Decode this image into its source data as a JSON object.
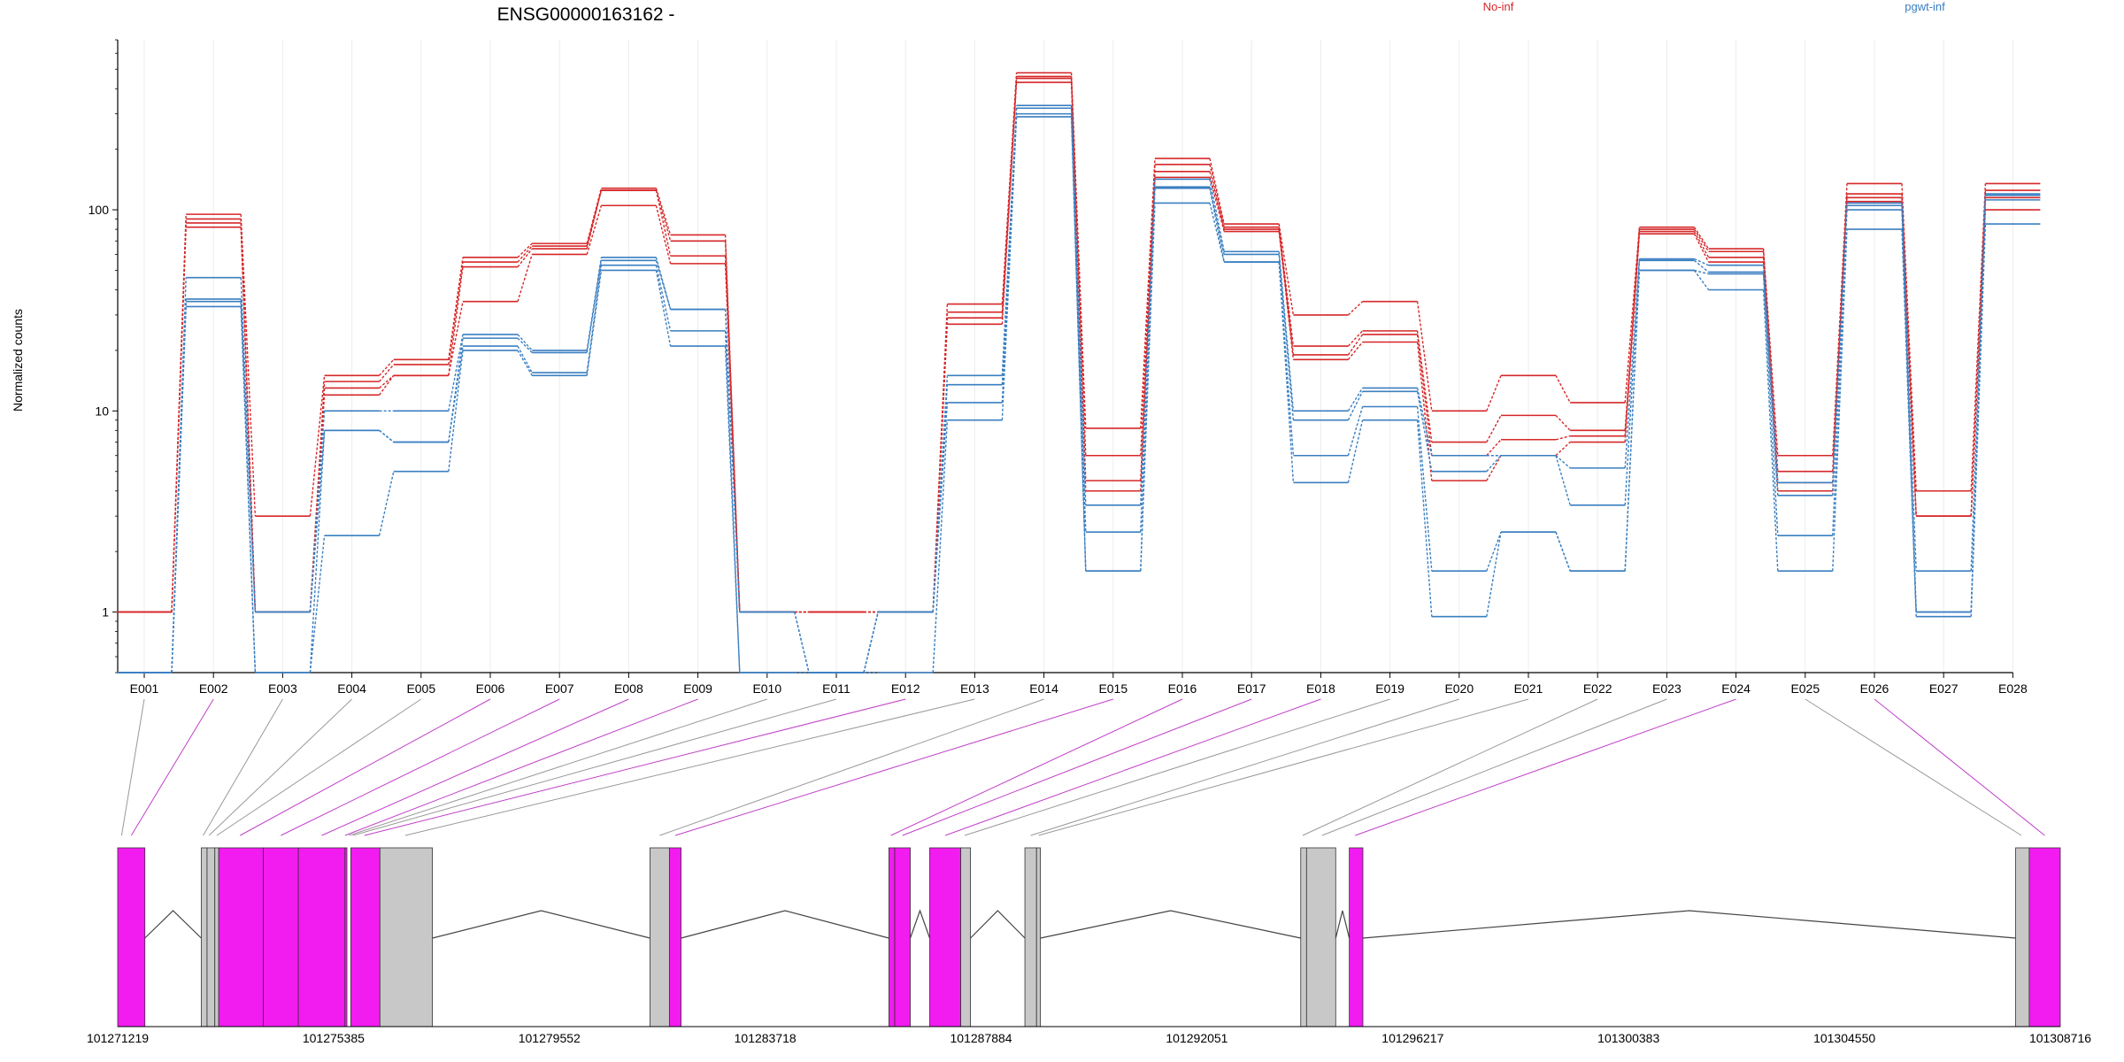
{
  "chart_data": {
    "type": "line",
    "title": "ENSG00000163162 -",
    "ylabel": "Normalized counts",
    "yscale": "log",
    "ylim": [
      0.5,
      700
    ],
    "yticks": [
      1,
      10,
      100
    ],
    "ytick_labels": [
      "1",
      "10",
      "100"
    ],
    "grid": "vertical",
    "categories": [
      "E001",
      "E002",
      "E003",
      "E004",
      "E005",
      "E006",
      "E007",
      "E008",
      "E009",
      "E010",
      "E011",
      "E012",
      "E013",
      "E014",
      "E015",
      "E016",
      "E017",
      "E018",
      "E019",
      "E020",
      "E021",
      "E022",
      "E023",
      "E024",
      "E025",
      "E026",
      "E027",
      "E028"
    ],
    "groups": [
      {
        "name": "No-inf",
        "color": "#d62728"
      },
      {
        "name": "pgwt-inf",
        "color": "#3a7fc1"
      }
    ],
    "series": [
      {
        "group": 0,
        "values": [
          1,
          95,
          3,
          15,
          18,
          58,
          68,
          128,
          75,
          1,
          1,
          1,
          34,
          480,
          8.2,
          180,
          85,
          30,
          35,
          10,
          15,
          11,
          82,
          64,
          6,
          135,
          4,
          135
        ]
      },
      {
        "group": 0,
        "values": [
          1,
          90,
          1,
          14,
          17,
          55,
          66,
          125,
          70,
          1,
          1,
          1,
          31,
          460,
          6,
          168,
          82,
          21,
          25,
          7,
          9.5,
          8,
          80,
          62,
          5,
          120,
          3,
          125
        ]
      },
      {
        "group": 0,
        "values": [
          1,
          86,
          1,
          13,
          15,
          52,
          64,
          125,
          59,
          1,
          1,
          1,
          29,
          450,
          4,
          155,
          80,
          19,
          24,
          6,
          7.2,
          7.5,
          78,
          58,
          4.4,
          115,
          3,
          115
        ]
      },
      {
        "group": 0,
        "values": [
          1,
          82,
          1,
          12,
          15,
          35,
          60,
          105,
          54,
          1,
          1,
          1,
          27,
          430,
          4.5,
          145,
          78,
          18,
          22,
          4.5,
          6,
          7,
          76,
          55,
          4,
          110,
          3,
          100
        ]
      },
      {
        "group": 1,
        "values": [
          0.5,
          46,
          1,
          10,
          10,
          24,
          20,
          58,
          32,
          1,
          0.5,
          1,
          15,
          330,
          3.4,
          142,
          62,
          10,
          13,
          6,
          6,
          5.2,
          57,
          53,
          4.4,
          108,
          1.6,
          120
        ]
      },
      {
        "group": 1,
        "values": [
          0.5,
          36,
          1,
          8,
          7,
          23,
          19.5,
          56,
          32,
          1,
          0.5,
          1,
          13.5,
          320,
          2.5,
          130,
          60,
          9,
          12.5,
          5,
          6,
          3.4,
          56,
          49,
          3.8,
          105,
          1,
          118
        ]
      },
      {
        "group": 1,
        "values": [
          0.5,
          35,
          0.5,
          8,
          7,
          21,
          15.5,
          53,
          25,
          0.5,
          0.5,
          1,
          11,
          300,
          1.6,
          128,
          55,
          6,
          10.5,
          1.6,
          2.5,
          1.6,
          50,
          48,
          2.4,
          100,
          1,
          112
        ]
      },
      {
        "group": 1,
        "values": [
          0.5,
          33,
          0.5,
          2.4,
          5,
          20,
          15,
          50,
          21,
          0.5,
          0.5,
          0.5,
          9,
          290,
          1.6,
          108,
          55,
          4.4,
          9,
          0.95,
          2.5,
          1.6,
          50,
          40,
          1.6,
          80,
          0.95,
          85
        ]
      }
    ],
    "genome": {
      "coordinate_labels": [
        "101271219",
        "101275385",
        "101279552",
        "101283718",
        "101287884",
        "101292051",
        "101296217",
        "101300383",
        "101304550",
        "101308716"
      ],
      "blocks": [
        {
          "frac": [
            0.0,
            0.014
          ],
          "color": "#f21bf0"
        },
        {
          "frac": [
            0.043,
            0.046
          ],
          "color": "#c8c8c8"
        },
        {
          "frac": [
            0.046,
            0.05
          ],
          "color": "#c8c8c8"
        },
        {
          "frac": [
            0.05,
            0.052
          ],
          "color": "#c8c8c8"
        },
        {
          "frac": [
            0.052,
            0.075
          ],
          "color": "#f21bf0"
        },
        {
          "frac": [
            0.075,
            0.093
          ],
          "color": "#f21bf0"
        },
        {
          "frac": [
            0.093,
            0.117
          ],
          "color": "#f21bf0"
        },
        {
          "frac": [
            0.117,
            0.118
          ],
          "color": "#f21bf0"
        },
        {
          "frac": [
            0.12,
            0.135
          ],
          "color": "#f21bf0"
        },
        {
          "frac": [
            0.135,
            0.162
          ],
          "color": "#c8c8c8"
        },
        {
          "frac": [
            0.274,
            0.284
          ],
          "color": "#c8c8c8"
        },
        {
          "frac": [
            0.284,
            0.29
          ],
          "color": "#f21bf0"
        },
        {
          "frac": [
            0.397,
            0.4
          ],
          "color": "#f21bf0"
        },
        {
          "frac": [
            0.4,
            0.408
          ],
          "color": "#f21bf0"
        },
        {
          "frac": [
            0.418,
            0.434
          ],
          "color": "#f21bf0"
        },
        {
          "frac": [
            0.434,
            0.439
          ],
          "color": "#c8c8c8"
        },
        {
          "frac": [
            0.467,
            0.473
          ],
          "color": "#c8c8c8"
        },
        {
          "frac": [
            0.473,
            0.475
          ],
          "color": "#c8c8c8"
        },
        {
          "frac": [
            0.609,
            0.612
          ],
          "color": "#c8c8c8"
        },
        {
          "frac": [
            0.612,
            0.627
          ],
          "color": "#c8c8c8"
        },
        {
          "frac": [
            0.634,
            0.641
          ],
          "color": "#f21bf0"
        },
        {
          "frac": [
            0.977,
            0.984
          ],
          "color": "#c8c8c8"
        },
        {
          "frac": [
            0.984,
            1.0
          ],
          "color": "#f21bf0"
        }
      ],
      "introns": [
        [
          0.014,
          0.043
        ],
        [
          0.162,
          0.274
        ],
        [
          0.29,
          0.397
        ],
        [
          0.408,
          0.418
        ],
        [
          0.439,
          0.467
        ],
        [
          0.475,
          0.609
        ],
        [
          0.627,
          0.634
        ],
        [
          0.641,
          0.977
        ]
      ],
      "links": [
        {
          "exon": 0,
          "frac": 0.002,
          "color": "gray"
        },
        {
          "exon": 1,
          "frac": 0.007,
          "color": "magenta"
        },
        {
          "exon": 2,
          "frac": 0.044,
          "color": "gray"
        },
        {
          "exon": 3,
          "frac": 0.047,
          "color": "gray"
        },
        {
          "exon": 4,
          "frac": 0.051,
          "color": "gray"
        },
        {
          "exon": 5,
          "frac": 0.063,
          "color": "magenta"
        },
        {
          "exon": 6,
          "frac": 0.084,
          "color": "magenta"
        },
        {
          "exon": 7,
          "frac": 0.105,
          "color": "magenta"
        },
        {
          "exon": 8,
          "frac": 0.117,
          "color": "magenta"
        },
        {
          "exon": 9,
          "frac": 0.119,
          "color": "gray"
        },
        {
          "exon": 10,
          "frac": 0.121,
          "color": "gray"
        },
        {
          "exon": 11,
          "frac": 0.127,
          "color": "magenta"
        },
        {
          "exon": 12,
          "frac": 0.148,
          "color": "gray"
        },
        {
          "exon": 13,
          "frac": 0.279,
          "color": "gray"
        },
        {
          "exon": 14,
          "frac": 0.287,
          "color": "magenta"
        },
        {
          "exon": 15,
          "frac": 0.398,
          "color": "magenta"
        },
        {
          "exon": 16,
          "frac": 0.404,
          "color": "magenta"
        },
        {
          "exon": 17,
          "frac": 0.426,
          "color": "magenta"
        },
        {
          "exon": 18,
          "frac": 0.436,
          "color": "gray"
        },
        {
          "exon": 19,
          "frac": 0.47,
          "color": "gray"
        },
        {
          "exon": 20,
          "frac": 0.474,
          "color": "gray"
        },
        {
          "exon": 21,
          "frac": 0.61,
          "color": "gray"
        },
        {
          "exon": 22,
          "frac": 0.62,
          "color": "gray"
        },
        {
          "exon": 23,
          "frac": 0.637,
          "color": "magenta"
        },
        {
          "exon": 24,
          "frac": 0.98,
          "color": "gray"
        },
        {
          "exon": 25,
          "frac": 0.992,
          "color": "magenta"
        }
      ]
    }
  }
}
